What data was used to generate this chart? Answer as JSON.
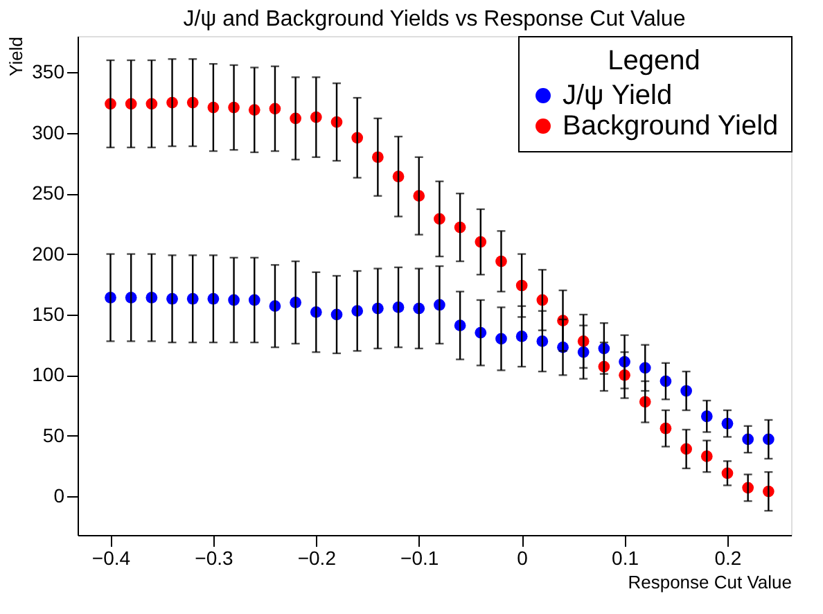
{
  "chart_data": {
    "type": "scatter",
    "title": "J/ψ and Background Yields vs Response Cut Value",
    "xlabel": "Response Cut Value",
    "ylabel": "Yield",
    "legend_title": "Legend",
    "x": [
      -0.4,
      -0.38,
      -0.36,
      -0.34,
      -0.32,
      -0.3,
      -0.28,
      -0.26,
      -0.24,
      -0.22,
      -0.2,
      -0.18,
      -0.16,
      -0.14,
      -0.12,
      -0.1,
      -0.08,
      -0.06,
      -0.04,
      -0.02,
      0,
      0.02,
      0.04,
      0.06,
      0.08,
      0.1,
      0.12,
      0.14,
      0.16,
      0.18,
      0.2,
      0.22,
      0.24
    ],
    "series": [
      {
        "name": "J/ψ Yield",
        "color": "#0000ff",
        "values": [
          164,
          164,
          164,
          163,
          163,
          163,
          162,
          162,
          157,
          160,
          152,
          150,
          153,
          155,
          156,
          155,
          158,
          141,
          135,
          130,
          132,
          128,
          123,
          119,
          122,
          111,
          106,
          95,
          87,
          66,
          60,
          47,
          47
        ],
        "errors": [
          36,
          36,
          36,
          36,
          36,
          36,
          35,
          35,
          34,
          34,
          33,
          32,
          33,
          33,
          33,
          33,
          32,
          28,
          27,
          26,
          25,
          25,
          23,
          22,
          21,
          22,
          19,
          15,
          16,
          13,
          11,
          11,
          16
        ]
      },
      {
        "name": "Background Yield",
        "color": "#ff0000",
        "values": [
          324,
          324,
          324,
          325,
          325,
          321,
          321,
          319,
          320,
          312,
          313,
          309,
          296,
          280,
          264,
          248,
          229,
          222,
          210,
          194,
          174,
          162,
          145,
          128,
          107,
          100,
          78,
          56,
          39,
          33,
          19,
          7,
          4
        ],
        "errors": [
          36,
          36,
          36,
          36,
          36,
          36,
          35,
          35,
          35,
          34,
          33,
          32,
          33,
          32,
          33,
          32,
          31,
          28,
          27,
          25,
          26,
          25,
          25,
          22,
          20,
          19,
          17,
          15,
          16,
          13,
          10,
          11,
          16
        ]
      }
    ],
    "xlim": [
      -0.432,
      0.262
    ],
    "ylim": [
      -32,
      380
    ],
    "xticks": [
      -0.4,
      -0.3,
      -0.2,
      -0.1,
      0,
      0.1,
      0.2
    ],
    "yticks": [
      0,
      50,
      100,
      150,
      200,
      250,
      300,
      350
    ],
    "grid": false,
    "legend": "top right",
    "marker": "circle"
  }
}
